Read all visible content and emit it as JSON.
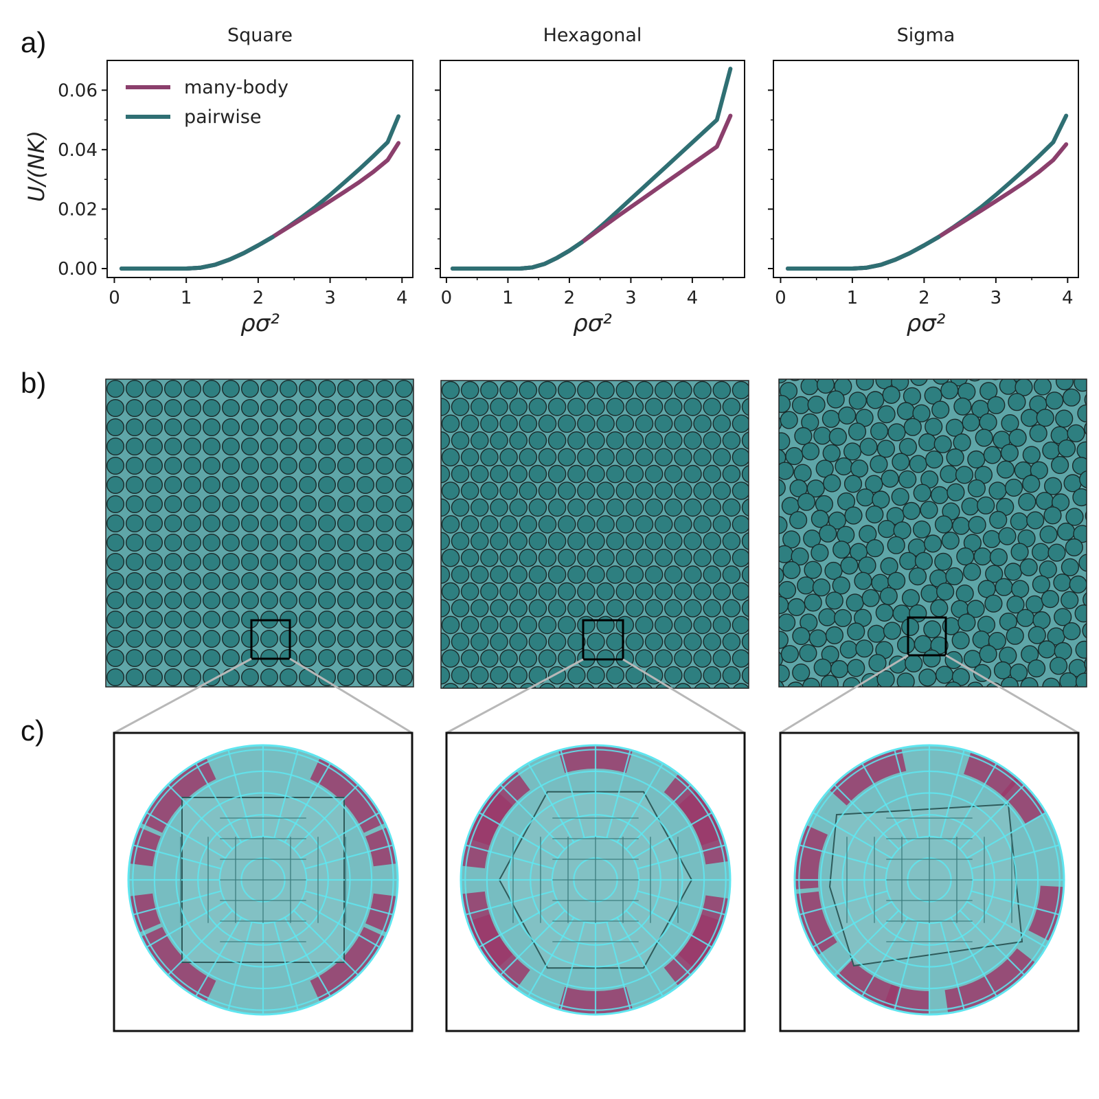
{
  "panel_labels": [
    "a)",
    "b)",
    "c)"
  ],
  "colors": {
    "many_body": "#8b3f6c",
    "pairwise": "#2f6f73",
    "particle_fill": "#2e7f80",
    "box_fill": "#5fa6a8",
    "facet_fill": "#4aa7ac",
    "facet_edge": "#5fe6f0",
    "facet_magenta": "#9b3a6a"
  },
  "chart_data": [
    {
      "type": "line",
      "title": "Square",
      "xlabel": "ρσ²",
      "ylabel": "U/(NK)",
      "xlim": [
        -0.1,
        4.15
      ],
      "ylim": [
        -0.003,
        0.07
      ],
      "xticks": [
        "0",
        "1",
        "2",
        "3",
        "4"
      ],
      "yticks": [
        "0.00",
        "0.02",
        "0.04",
        "0.06"
      ],
      "legend": {
        "position": "top-left",
        "entries": [
          "many-body",
          "pairwise"
        ]
      },
      "series": [
        {
          "name": "many-body",
          "x": [
            0.1,
            1.0,
            1.2,
            1.4,
            1.6,
            1.8,
            2.0,
            2.2,
            2.4,
            2.6,
            2.8,
            3.0,
            3.2,
            3.4,
            3.6,
            3.8,
            3.95
          ],
          "y": [
            0,
            0,
            0.0003,
            0.0013,
            0.003,
            0.0052,
            0.0078,
            0.0106,
            0.0136,
            0.0166,
            0.0196,
            0.0227,
            0.0258,
            0.029,
            0.0325,
            0.0365,
            0.0422
          ]
        },
        {
          "name": "pairwise",
          "x": [
            0.1,
            1.0,
            1.2,
            1.4,
            1.6,
            1.8,
            2.0,
            2.2,
            2.4,
            2.6,
            2.8,
            3.0,
            3.2,
            3.4,
            3.6,
            3.8,
            3.95
          ],
          "y": [
            0,
            0,
            0.0003,
            0.0013,
            0.003,
            0.0052,
            0.0078,
            0.0106,
            0.0138,
            0.0172,
            0.0208,
            0.0248,
            0.029,
            0.0333,
            0.0378,
            0.0425,
            0.0512
          ]
        }
      ]
    },
    {
      "type": "line",
      "title": "Hexagonal",
      "xlabel": "ρσ²",
      "ylabel": "",
      "xlim": [
        -0.1,
        4.85
      ],
      "ylim": [
        -0.003,
        0.07
      ],
      "xticks": [
        "0",
        "1",
        "2",
        "3",
        "4"
      ],
      "yticks": [],
      "series": [
        {
          "name": "many-body",
          "x": [
            0.1,
            1.2,
            1.4,
            1.6,
            1.8,
            2.0,
            2.2,
            2.4,
            2.6,
            2.8,
            3.0,
            3.2,
            3.4,
            3.6,
            3.8,
            4.0,
            4.2,
            4.4,
            4.62
          ],
          "y": [
            0,
            0,
            0.0004,
            0.0016,
            0.0036,
            0.006,
            0.0088,
            0.0118,
            0.0148,
            0.0178,
            0.0207,
            0.0236,
            0.0265,
            0.0294,
            0.0323,
            0.0352,
            0.0381,
            0.041,
            0.0514
          ]
        },
        {
          "name": "pairwise",
          "x": [
            0.1,
            1.2,
            1.4,
            1.6,
            1.8,
            2.0,
            2.2,
            2.4,
            2.6,
            2.8,
            3.0,
            3.2,
            3.4,
            3.6,
            3.8,
            4.0,
            4.2,
            4.4,
            4.62
          ],
          "y": [
            0,
            0,
            0.0004,
            0.0016,
            0.0036,
            0.006,
            0.0088,
            0.0122,
            0.0158,
            0.0196,
            0.0234,
            0.0272,
            0.031,
            0.0348,
            0.0386,
            0.0424,
            0.0462,
            0.05,
            0.0672
          ]
        }
      ]
    },
    {
      "type": "line",
      "title": "Sigma",
      "xlabel": "ρσ²",
      "ylabel": "",
      "xlim": [
        -0.1,
        4.15
      ],
      "ylim": [
        -0.003,
        0.07
      ],
      "xticks": [
        "0",
        "1",
        "2",
        "3",
        "4"
      ],
      "yticks": [],
      "series": [
        {
          "name": "many-body",
          "x": [
            0.1,
            1.0,
            1.2,
            1.4,
            1.6,
            1.8,
            2.0,
            2.2,
            2.4,
            2.6,
            2.8,
            3.0,
            3.2,
            3.4,
            3.6,
            3.8,
            3.98
          ],
          "y": [
            0,
            0,
            0.0003,
            0.0013,
            0.003,
            0.0052,
            0.0078,
            0.0106,
            0.0136,
            0.0166,
            0.0196,
            0.0227,
            0.0258,
            0.029,
            0.0325,
            0.0365,
            0.0418
          ]
        },
        {
          "name": "pairwise",
          "x": [
            0.1,
            1.0,
            1.2,
            1.4,
            1.6,
            1.8,
            2.0,
            2.2,
            2.4,
            2.6,
            2.8,
            3.0,
            3.2,
            3.4,
            3.6,
            3.8,
            3.98
          ],
          "y": [
            0,
            0,
            0.0003,
            0.0013,
            0.003,
            0.0052,
            0.0078,
            0.0106,
            0.0138,
            0.0172,
            0.0208,
            0.0248,
            0.029,
            0.0333,
            0.0378,
            0.0425,
            0.0514
          ]
        }
      ]
    }
  ],
  "packings": [
    {
      "name": "Square",
      "lattice": "square"
    },
    {
      "name": "Hexagonal",
      "lattice": "hexagonal"
    },
    {
      "name": "Sigma",
      "lattice": "sigma"
    }
  ],
  "zooms": [
    {
      "name": "Square",
      "pattern": "square"
    },
    {
      "name": "Hexagonal",
      "pattern": "hexagonal"
    },
    {
      "name": "Sigma",
      "pattern": "sigma"
    }
  ]
}
